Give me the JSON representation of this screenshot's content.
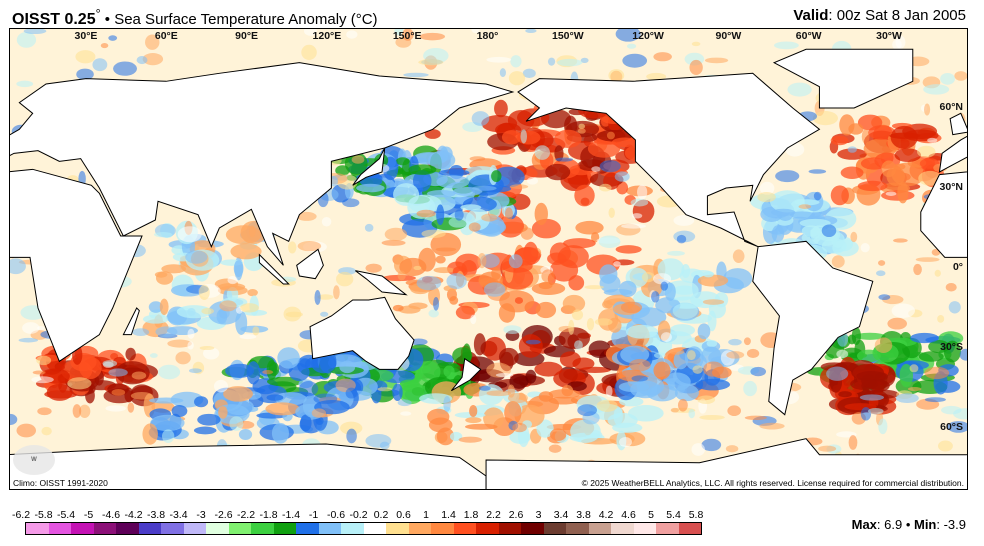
{
  "header": {
    "product": "OISST 0.25",
    "degree": "°",
    "separator": "•",
    "subtitle": "Sea Surface Temperature Anomaly (°C)",
    "valid_label": "Valid",
    "valid_value": ": 00z Sat 8 Jan 2005"
  },
  "map": {
    "longitude_labels": [
      "30°E",
      "60°E",
      "90°E",
      "120°E",
      "150°E",
      "180°",
      "150°W",
      "120°W",
      "90°W",
      "60°W",
      "30°W"
    ],
    "latitude_labels": [
      "60°N",
      "30°N",
      "0°",
      "30°S",
      "60°S"
    ],
    "climo": "Climo: OISST 1991-2020",
    "copyright": "© 2025 WeatherBELL Analytics, LLC. All rights reserved. License required for commercial distribution.",
    "logo_text": "WeatherBELL"
  },
  "colorbar": {
    "ticks": [
      "-6.2",
      "-5.8",
      "-5.4",
      "-5",
      "-4.6",
      "-4.2",
      "-3.8",
      "-3.4",
      "-3",
      "-2.6",
      "-2.2",
      "-1.8",
      "-1.4",
      "-1",
      "-0.6",
      "-0.2",
      "0.2",
      "0.6",
      "1",
      "1.4",
      "1.8",
      "2.2",
      "2.6",
      "3",
      "3.4",
      "3.8",
      "4.2",
      "4.6",
      "5",
      "5.4",
      "5.8"
    ],
    "colors": [
      "#f59ae8",
      "#e455e0",
      "#c412b4",
      "#8c1078",
      "#5e0058",
      "#4b3cc8",
      "#8070e4",
      "#c0b8f8",
      "#e0ffe0",
      "#80f070",
      "#3cd040",
      "#10a010",
      "#2070e8",
      "#80c0f8",
      "#b8f0f8",
      "#ffffff",
      "#ffe090",
      "#ffa860",
      "#ff8840",
      "#ff5020",
      "#d82000",
      "#a01000",
      "#700000",
      "#6c3c30",
      "#906050",
      "#c8a090",
      "#f0d8d0",
      "#ffe8e8",
      "#f0a0a0",
      "#d85050"
    ]
  },
  "stats": {
    "max_label": "Max",
    "max_value": ": 6.9",
    "sep": " • ",
    "min_label": "Min",
    "min_value": ": -3.9"
  }
}
